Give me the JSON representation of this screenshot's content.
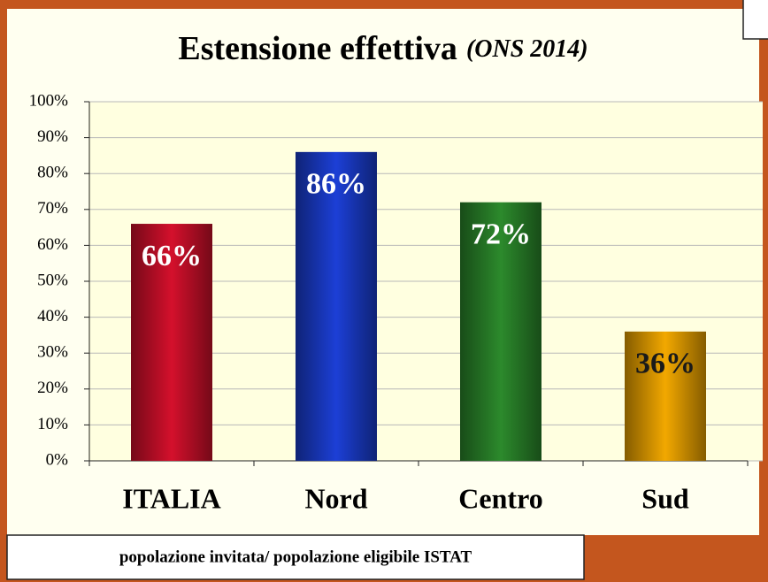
{
  "chart_data": {
    "type": "bar",
    "title": "Estensione effettiva",
    "subtitle": "(ONS 2014)",
    "categories": [
      "ITALIA",
      "Nord",
      "Centro",
      "Sud"
    ],
    "values": [
      66,
      86,
      72,
      36
    ],
    "value_labels": [
      "66%",
      "86%",
      "72%",
      "36%"
    ],
    "colors": [
      "#d4102c",
      "#1c3fd6",
      "#2c8a2c",
      "#f2a800"
    ],
    "ylim": [
      0,
      100
    ],
    "yticks": [
      {
        "value": 0,
        "label": "0%"
      },
      {
        "value": 10,
        "label": "10%"
      },
      {
        "value": 20,
        "label": "20%"
      },
      {
        "value": 30,
        "label": "30%"
      },
      {
        "value": 40,
        "label": "40%"
      },
      {
        "value": 50,
        "label": "50%"
      },
      {
        "value": 60,
        "label": "60%"
      },
      {
        "value": 70,
        "label": "70%"
      },
      {
        "value": 80,
        "label": "80%"
      },
      {
        "value": 90,
        "label": "90%"
      },
      {
        "value": 100,
        "label": "100%"
      }
    ],
    "grid": true,
    "note": "popolazione invitata/ popolazione eligibile ISTAT"
  }
}
